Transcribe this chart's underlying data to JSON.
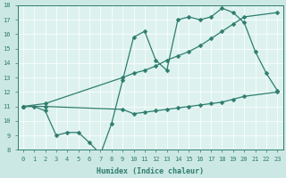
{
  "line1_x": [
    0,
    1,
    2,
    3,
    4,
    5,
    6,
    7,
    8,
    9,
    10,
    11,
    12,
    13,
    14,
    15,
    16,
    17,
    18,
    19,
    20,
    21,
    22,
    23
  ],
  "line1_y": [
    11,
    11,
    10.7,
    9.0,
    9.2,
    9.2,
    8.5,
    7.7,
    9.8,
    12.8,
    15.8,
    16.2,
    14.2,
    13.5,
    17.0,
    17.2,
    17.0,
    17.2,
    17.8,
    17.5,
    16.8,
    14.8,
    13.3,
    12.1
  ],
  "line2_x": [
    0,
    2,
    9,
    10,
    11,
    12,
    13,
    14,
    15,
    16,
    17,
    18,
    19,
    20,
    23
  ],
  "line2_y": [
    11,
    11.2,
    13.0,
    13.3,
    13.5,
    13.8,
    14.2,
    14.5,
    14.8,
    15.2,
    15.7,
    16.2,
    16.7,
    17.2,
    17.5
  ],
  "line3_x": [
    0,
    2,
    9,
    10,
    11,
    12,
    13,
    14,
    15,
    16,
    17,
    18,
    19,
    20,
    23
  ],
  "line3_y": [
    11,
    11.0,
    10.8,
    10.5,
    10.6,
    10.7,
    10.8,
    10.9,
    11.0,
    11.1,
    11.2,
    11.3,
    11.5,
    11.7,
    12.0
  ],
  "line_color": "#2e7d6e",
  "bg_color": "#cce8e4",
  "plot_bg": "#ddf2ef",
  "xlabel": "Humidex (Indice chaleur)",
  "xlim": [
    -0.5,
    23.5
  ],
  "ylim": [
    8,
    18
  ],
  "xticks": [
    0,
    1,
    2,
    3,
    4,
    5,
    6,
    7,
    8,
    9,
    10,
    11,
    12,
    13,
    14,
    15,
    16,
    17,
    18,
    19,
    20,
    21,
    22,
    23
  ],
  "yticks": [
    8,
    9,
    10,
    11,
    12,
    13,
    14,
    15,
    16,
    17,
    18
  ],
  "markersize": 2.5,
  "linewidth": 0.9,
  "tick_fontsize": 5.0,
  "xlabel_fontsize": 6.0
}
